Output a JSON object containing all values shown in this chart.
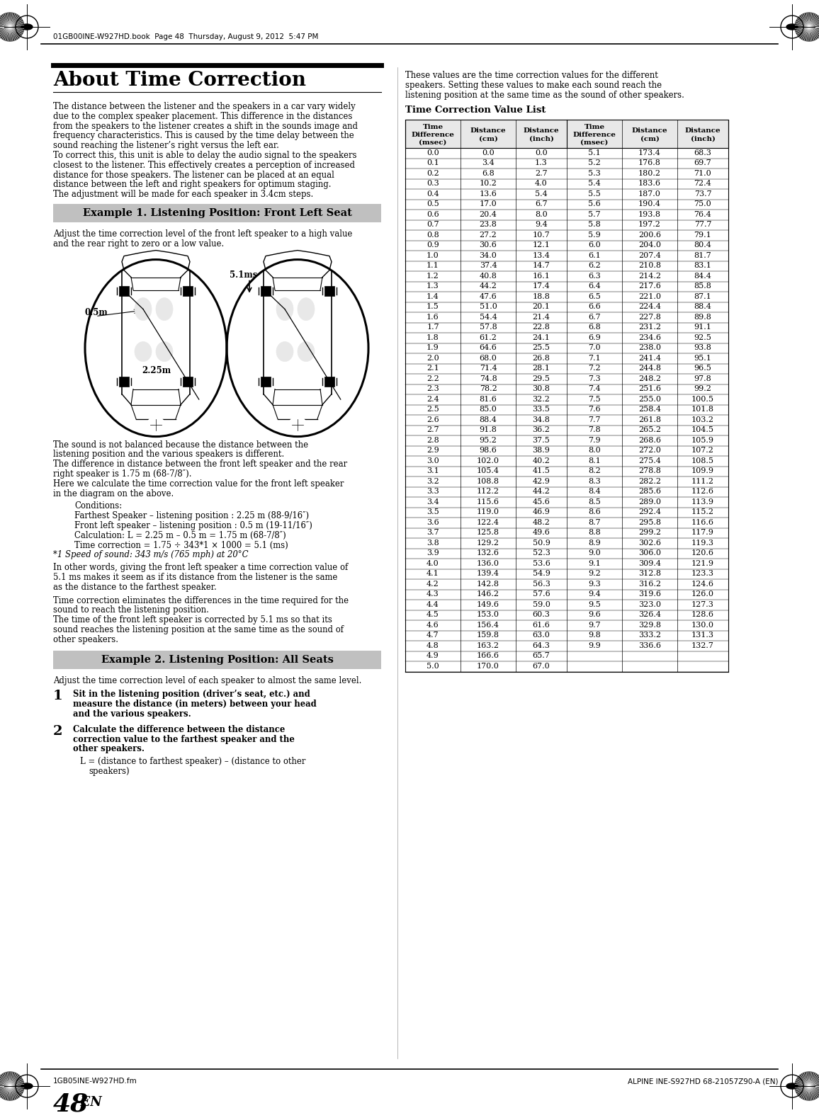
{
  "page_bg": "#ffffff",
  "top_header_text": "01GB00INE-W927HD.book  Page 48  Thursday, August 9, 2012  5:47 PM",
  "bottom_footer_left": "1GB05INE-W927HD.fm",
  "bottom_footer_right": "ALPINE INE-S927HD 68-21057Z90-A (EN)",
  "page_number_large": "48",
  "page_number_small": "-EN",
  "title": "About Time Correction",
  "body_text_1_lines": [
    "The distance between the listener and the speakers in a car vary widely",
    "due to the complex speaker placement. This difference in the distances",
    "from the speakers to the listener creates a shift in the sounds image and",
    "frequency characteristics. This is caused by the time delay between the",
    "sound reaching the listener’s right versus the left ear.",
    "To correct this, this unit is able to delay the audio signal to the speakers",
    "closest to the listener. This effectively creates a perception of increased",
    "distance for those speakers. The listener can be placed at an equal",
    "distance between the left and right speakers for optimum staging.",
    "The adjustment will be made for each speaker in 3.4cm steps."
  ],
  "example1_header": "Example 1. Listening Position: Front Left Seat",
  "example1_lines": [
    "Adjust the time correction level of the front left speaker to a high value",
    "and the rear right to zero or a low value."
  ],
  "right_col_intro_lines": [
    "These values are the time correction values for the different",
    "speakers. Setting these values to make each sound reach the",
    "listening position at the same time as the sound of other speakers."
  ],
  "table_title": "Time Correction Value List",
  "table_col_headers": [
    "Time\nDifference\n(msec)",
    "Distance\n(cm)",
    "Distance\n(inch)",
    "Time\nDifference\n(msec)",
    "Distance\n(cm)",
    "Distance\n(inch)"
  ],
  "table_data": [
    [
      "0.0",
      "0.0",
      "0.0",
      "5.1",
      "173.4",
      "68.3"
    ],
    [
      "0.1",
      "3.4",
      "1.3",
      "5.2",
      "176.8",
      "69.7"
    ],
    [
      "0.2",
      "6.8",
      "2.7",
      "5.3",
      "180.2",
      "71.0"
    ],
    [
      "0.3",
      "10.2",
      "4.0",
      "5.4",
      "183.6",
      "72.4"
    ],
    [
      "0.4",
      "13.6",
      "5.4",
      "5.5",
      "187.0",
      "73.7"
    ],
    [
      "0.5",
      "17.0",
      "6.7",
      "5.6",
      "190.4",
      "75.0"
    ],
    [
      "0.6",
      "20.4",
      "8.0",
      "5.7",
      "193.8",
      "76.4"
    ],
    [
      "0.7",
      "23.8",
      "9.4",
      "5.8",
      "197.2",
      "77.7"
    ],
    [
      "0.8",
      "27.2",
      "10.7",
      "5.9",
      "200.6",
      "79.1"
    ],
    [
      "0.9",
      "30.6",
      "12.1",
      "6.0",
      "204.0",
      "80.4"
    ],
    [
      "1.0",
      "34.0",
      "13.4",
      "6.1",
      "207.4",
      "81.7"
    ],
    [
      "1.1",
      "37.4",
      "14.7",
      "6.2",
      "210.8",
      "83.1"
    ],
    [
      "1.2",
      "40.8",
      "16.1",
      "6.3",
      "214.2",
      "84.4"
    ],
    [
      "1.3",
      "44.2",
      "17.4",
      "6.4",
      "217.6",
      "85.8"
    ],
    [
      "1.4",
      "47.6",
      "18.8",
      "6.5",
      "221.0",
      "87.1"
    ],
    [
      "1.5",
      "51.0",
      "20.1",
      "6.6",
      "224.4",
      "88.4"
    ],
    [
      "1.6",
      "54.4",
      "21.4",
      "6.7",
      "227.8",
      "89.8"
    ],
    [
      "1.7",
      "57.8",
      "22.8",
      "6.8",
      "231.2",
      "91.1"
    ],
    [
      "1.8",
      "61.2",
      "24.1",
      "6.9",
      "234.6",
      "92.5"
    ],
    [
      "1.9",
      "64.6",
      "25.5",
      "7.0",
      "238.0",
      "93.8"
    ],
    [
      "2.0",
      "68.0",
      "26.8",
      "7.1",
      "241.4",
      "95.1"
    ],
    [
      "2.1",
      "71.4",
      "28.1",
      "7.2",
      "244.8",
      "96.5"
    ],
    [
      "2.2",
      "74.8",
      "29.5",
      "7.3",
      "248.2",
      "97.8"
    ],
    [
      "2.3",
      "78.2",
      "30.8",
      "7.4",
      "251.6",
      "99.2"
    ],
    [
      "2.4",
      "81.6",
      "32.2",
      "7.5",
      "255.0",
      "100.5"
    ],
    [
      "2.5",
      "85.0",
      "33.5",
      "7.6",
      "258.4",
      "101.8"
    ],
    [
      "2.6",
      "88.4",
      "34.8",
      "7.7",
      "261.8",
      "103.2"
    ],
    [
      "2.7",
      "91.8",
      "36.2",
      "7.8",
      "265.2",
      "104.5"
    ],
    [
      "2.8",
      "95.2",
      "37.5",
      "7.9",
      "268.6",
      "105.9"
    ],
    [
      "2.9",
      "98.6",
      "38.9",
      "8.0",
      "272.0",
      "107.2"
    ],
    [
      "3.0",
      "102.0",
      "40.2",
      "8.1",
      "275.4",
      "108.5"
    ],
    [
      "3.1",
      "105.4",
      "41.5",
      "8.2",
      "278.8",
      "109.9"
    ],
    [
      "3.2",
      "108.8",
      "42.9",
      "8.3",
      "282.2",
      "111.2"
    ],
    [
      "3.3",
      "112.2",
      "44.2",
      "8.4",
      "285.6",
      "112.6"
    ],
    [
      "3.4",
      "115.6",
      "45.6",
      "8.5",
      "289.0",
      "113.9"
    ],
    [
      "3.5",
      "119.0",
      "46.9",
      "8.6",
      "292.4",
      "115.2"
    ],
    [
      "3.6",
      "122.4",
      "48.2",
      "8.7",
      "295.8",
      "116.6"
    ],
    [
      "3.7",
      "125.8",
      "49.6",
      "8.8",
      "299.2",
      "117.9"
    ],
    [
      "3.8",
      "129.2",
      "50.9",
      "8.9",
      "302.6",
      "119.3"
    ],
    [
      "3.9",
      "132.6",
      "52.3",
      "9.0",
      "306.0",
      "120.6"
    ],
    [
      "4.0",
      "136.0",
      "53.6",
      "9.1",
      "309.4",
      "121.9"
    ],
    [
      "4.1",
      "139.4",
      "54.9",
      "9.2",
      "312.8",
      "123.3"
    ],
    [
      "4.2",
      "142.8",
      "56.3",
      "9.3",
      "316.2",
      "124.6"
    ],
    [
      "4.3",
      "146.2",
      "57.6",
      "9.4",
      "319.6",
      "126.0"
    ],
    [
      "4.4",
      "149.6",
      "59.0",
      "9.5",
      "323.0",
      "127.3"
    ],
    [
      "4.5",
      "153.0",
      "60.3",
      "9.6",
      "326.4",
      "128.6"
    ],
    [
      "4.6",
      "156.4",
      "61.6",
      "9.7",
      "329.8",
      "130.0"
    ],
    [
      "4.7",
      "159.8",
      "63.0",
      "9.8",
      "333.2",
      "131.3"
    ],
    [
      "4.8",
      "163.2",
      "64.3",
      "9.9",
      "336.6",
      "132.7"
    ],
    [
      "4.9",
      "166.6",
      "65.7",
      "",
      "",
      ""
    ],
    [
      "5.0",
      "170.0",
      "67.0",
      "",
      "",
      ""
    ]
  ],
  "sound_not_balanced_lines": [
    "The sound is not balanced because the distance between the",
    "listening position and the various speakers is different.",
    "The difference in distance between the front left speaker and the rear",
    "right speaker is 1.75 m (68-7/8″).",
    "Here we calculate the time correction value for the front left speaker",
    "in the diagram on the above."
  ],
  "conditions_lines": [
    "Conditions:",
    "Farthest Speaker – listening position : 2.25 m (88-9/16″)",
    "Front left speaker – listening position : 0.5 m (19-11/16″)",
    "Calculation: L = 2.25 m – 0.5 m = 1.75 m (68-7/8″)",
    "Time correction = 1.75 ÷ 343*1 × 1000 = 5.1 (ms)"
  ],
  "footnote": "*1 Speed of sound: 343 m/s (765 mph) at 20°C",
  "in_other_words_lines": [
    "In other words, giving the front left speaker a time correction value of",
    "5.1 ms makes it seem as if its distance from the listener is the same",
    "as the distance to the farthest speaker."
  ],
  "time_corr_elim_lines": [
    "Time correction eliminates the differences in the time required for the",
    "sound to reach the listening position.",
    "The time of the front left speaker is corrected by 5.1 ms so that its",
    "sound reaches the listening position at the same time as the sound of",
    "other speakers."
  ],
  "example2_header": "Example 2. Listening Position: All Seats",
  "example2_text": "Adjust the time correction level of each speaker to almost the same level.",
  "step1_lines": [
    "Sit in the listening position (driver’s seat, etc.) and",
    "measure the distance (in meters) between your head",
    "and the various speakers."
  ],
  "step2_bold_lines": [
    "Calculate the difference between the distance",
    "correction value to the farthest speaker and the",
    "other speakers."
  ],
  "step2_formula_lines": [
    "L = (distance to farthest speaker) – (distance to other speakers)",
    "speakers)"
  ],
  "diagram_label_05m": "0.5m",
  "diagram_label_225m": "2.25m",
  "diagram_label_51ms": "5.1ms"
}
